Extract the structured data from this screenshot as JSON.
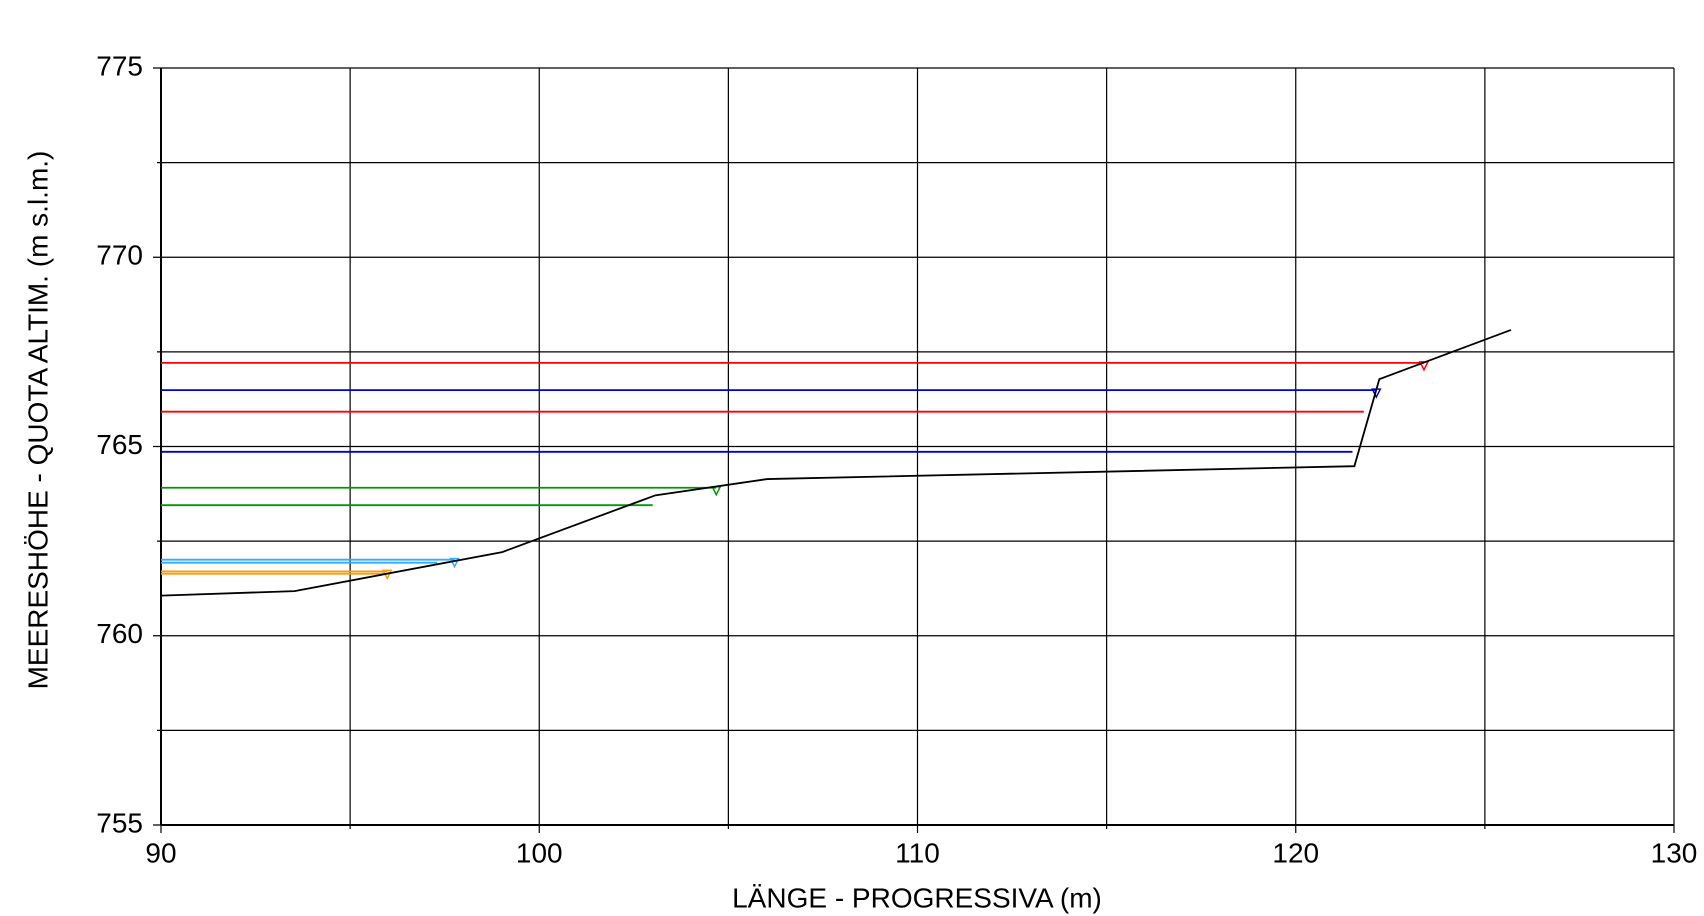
{
  "chart_data": {
    "type": "line",
    "xlabel": "LÄNGE - PROGRESSIVA  (m)",
    "ylabel": "MEERESHÖHE - QUOTA ALTIM.  (m s.l.m.)",
    "xlim": [
      90,
      130
    ],
    "xticks": [
      90,
      100,
      110,
      120,
      130
    ],
    "minor_xticks": [
      95,
      105,
      115,
      125
    ],
    "ylim": [
      755,
      775
    ],
    "yticks": [
      755,
      760,
      765,
      770,
      775
    ],
    "minor_yticks": [
      757.5,
      762.5,
      767.5,
      772.5
    ],
    "grid": true,
    "series": [
      {
        "color": "#ff0000",
        "marker": true,
        "x": [
          90,
          123.39
        ],
        "values": [
          767.21,
          767.21
        ]
      },
      {
        "color": "#0000cc",
        "marker": true,
        "x": [
          90,
          122.13
        ],
        "values": [
          766.49,
          766.49
        ]
      },
      {
        "color": "#ff0000",
        "marker": false,
        "x": [
          90,
          121.8
        ],
        "values": [
          765.92,
          765.92
        ]
      },
      {
        "color": "#0000cc",
        "marker": false,
        "x": [
          90,
          121.5
        ],
        "values": [
          764.86,
          764.86
        ]
      },
      {
        "color": "#009900",
        "marker": true,
        "x": [
          90,
          104.68
        ],
        "values": [
          763.91,
          763.91
        ]
      },
      {
        "color": "#009900",
        "marker": false,
        "x": [
          90,
          103.0
        ],
        "values": [
          763.45,
          763.45
        ]
      },
      {
        "color": "#33aaff",
        "marker": true,
        "x": [
          90,
          97.76
        ],
        "values": [
          762.01,
          762.01
        ]
      },
      {
        "color": "#33aaff",
        "marker": false,
        "x": [
          90,
          97.3
        ],
        "values": [
          761.93,
          761.93
        ]
      },
      {
        "color": "#ff9900",
        "marker": true,
        "x": [
          90,
          95.98
        ],
        "values": [
          761.7,
          761.7
        ]
      },
      {
        "color": "#ff9900",
        "marker": false,
        "x": [
          90,
          95.9
        ],
        "values": [
          761.64,
          761.64
        ]
      },
      {
        "color": "#000000",
        "marker": false,
        "x": [
          90,
          93.53,
          99.02,
          103.07,
          106.03,
          121.55,
          122.21,
          125.69
        ],
        "values": [
          761.06,
          761.18,
          762.21,
          763.71,
          764.14,
          764.48,
          766.78,
          768.08
        ]
      }
    ]
  }
}
